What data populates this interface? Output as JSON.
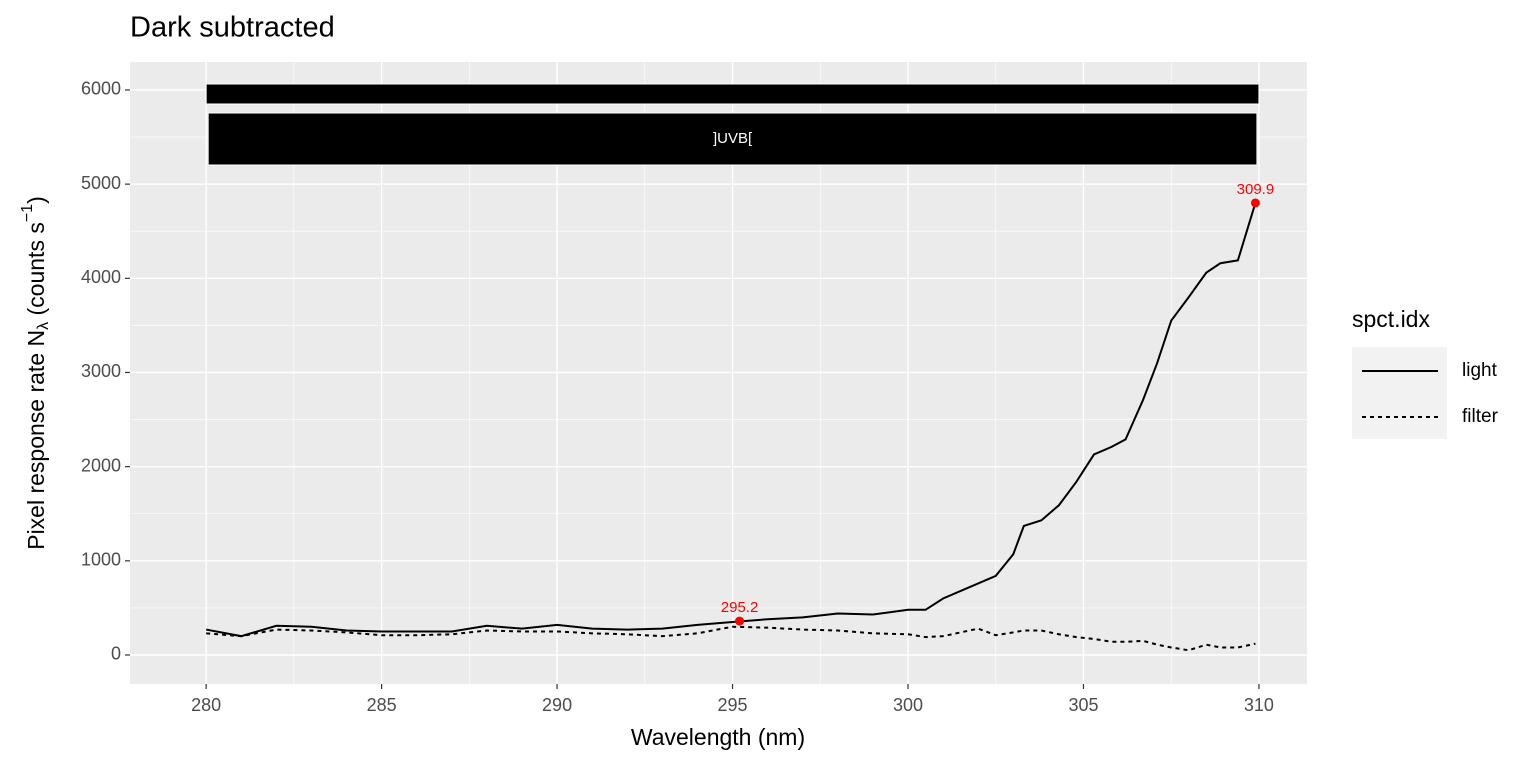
{
  "chart_data": {
    "type": "line",
    "title": "Dark subtracted",
    "xlabel": "Wavelength (nm)",
    "ylabel": {
      "text": "Pixel  response  rate  ",
      "symbol": "N",
      "subscript": "λ",
      "unit": "  (counts  s",
      "superscript": "−1",
      "close": ")"
    },
    "x": [
      280,
      281,
      282,
      283,
      284,
      285,
      286,
      287,
      288,
      289,
      290,
      291,
      292,
      293,
      294,
      295,
      296,
      297,
      298,
      299,
      300,
      300.5,
      301,
      302,
      302.5,
      303,
      303.3,
      303.8,
      304.3,
      304.8,
      305.3,
      305.8,
      306.2,
      306.7,
      307.1,
      307.5,
      308,
      308.5,
      308.9,
      309.4,
      309.9
    ],
    "series": [
      {
        "name": "light",
        "color": "#000000",
        "linetype": "solid",
        "values": [
          270,
          200,
          310,
          300,
          260,
          250,
          250,
          250,
          310,
          280,
          320,
          280,
          270,
          280,
          320,
          350,
          380,
          400,
          440,
          430,
          480,
          480,
          600,
          760,
          840,
          1070,
          1370,
          1430,
          1590,
          1840,
          2130,
          2210,
          2290,
          2710,
          3100,
          3550,
          3800,
          4060,
          4160,
          4190,
          4800
        ]
      },
      {
        "name": "filter",
        "color": "#000000",
        "linetype": "dashed",
        "values": [
          230,
          200,
          270,
          260,
          240,
          210,
          210,
          220,
          260,
          250,
          250,
          230,
          220,
          200,
          230,
          300,
          290,
          270,
          260,
          230,
          220,
          190,
          200,
          280,
          210,
          240,
          260,
          260,
          220,
          190,
          170,
          140,
          140,
          150,
          110,
          80,
          50,
          110,
          80,
          80,
          120
        ]
      }
    ],
    "legend_title": "spct.idx",
    "annotations": [
      {
        "x": 295.2,
        "y": 360,
        "color": "#ff0000"
      },
      {
        "x": 309.9,
        "y": 4800,
        "color": "#ff0000"
      }
    ],
    "waveband": {
      "label": "]UVB[",
      "range": [
        280,
        310
      ]
    },
    "xlim": [
      277.83,
      311.37
    ],
    "xticks": [
      280,
      285,
      290,
      295,
      300,
      305,
      310
    ],
    "xminorticks": [
      282.5,
      287.5,
      292.5,
      297.5,
      302.5,
      307.5
    ],
    "ylim": [
      -308,
      6297
    ],
    "yticks": [
      0,
      1000,
      2000,
      3000,
      4000,
      5000,
      6000
    ],
    "yminorticks": [
      500,
      1500,
      2500,
      3500,
      4500,
      5500
    ],
    "grid": true,
    "legend": "right"
  }
}
